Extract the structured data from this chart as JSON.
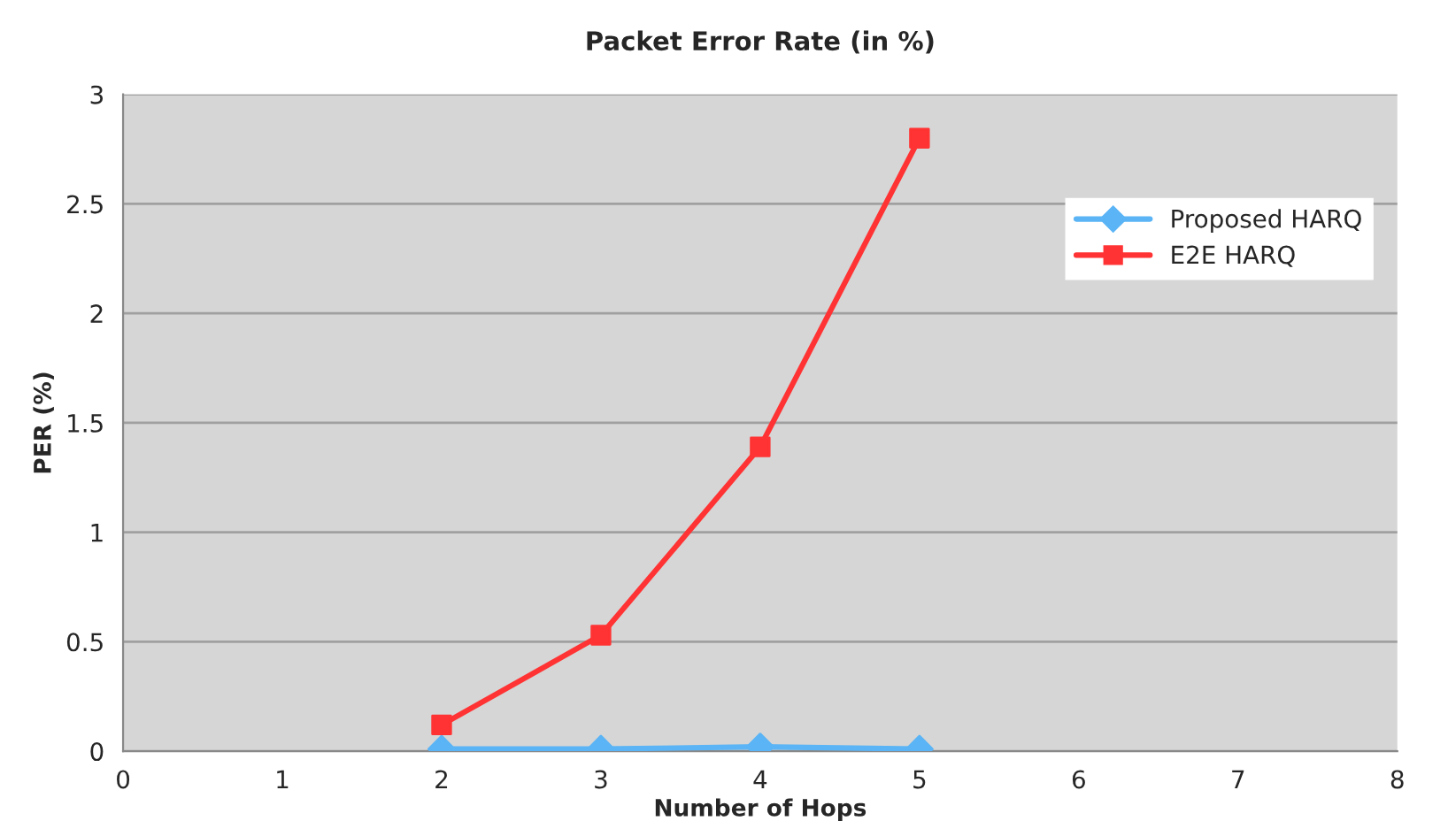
{
  "chart_data": {
    "type": "line",
    "title": "Packet Error Rate (in %)",
    "xlabel": "Number of Hops",
    "ylabel": "PER (%)",
    "x": [
      2,
      3,
      4,
      5
    ],
    "series": [
      {
        "name": "Proposed HARQ",
        "color": "#5ab4f5",
        "marker": "diamond",
        "values": [
          0.01,
          0.01,
          0.02,
          0.01
        ]
      },
      {
        "name": "E2E HARQ",
        "color": "#ff3333",
        "marker": "square",
        "values": [
          0.12,
          0.53,
          1.39,
          2.8
        ]
      }
    ],
    "xlim": [
      0,
      8
    ],
    "xticks": [
      0,
      1,
      2,
      3,
      4,
      5,
      6,
      7,
      8
    ],
    "ylim": [
      0,
      3
    ],
    "yticks": [
      0,
      0.5,
      1,
      1.5,
      2,
      2.5,
      3
    ],
    "grid": "y",
    "legend": "right"
  }
}
